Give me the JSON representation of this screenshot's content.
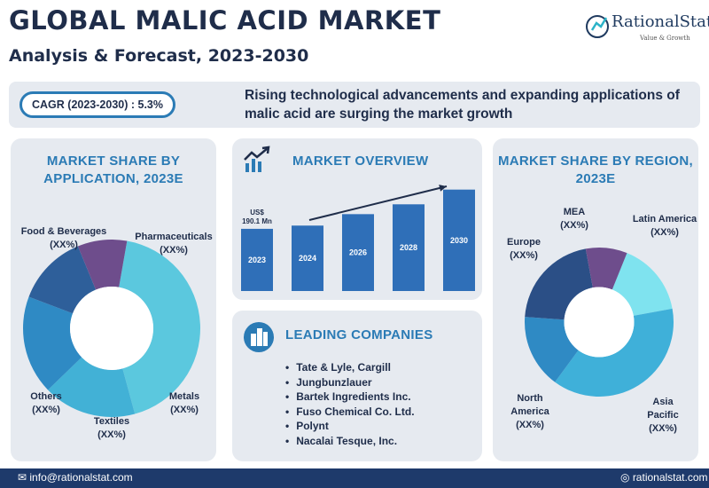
{
  "header": {
    "title": "GLOBAL MALIC ACID MARKET",
    "subtitle": "Analysis & Forecast, 2023-2030",
    "logo_name": "RationalStat",
    "logo_tagline": "Value & Growth"
  },
  "banner": {
    "cagr": "CAGR (2023-2030) : 5.3%",
    "tagline": "Rising technological advancements and expanding applications of malic acid are surging the market growth"
  },
  "colors": {
    "navy": "#1f2d4a",
    "accent": "#2b7bb5",
    "bar": "#2f6fb8",
    "footer": "#1e3a6b"
  },
  "overview": {
    "title": "MARKET OVERVIEW",
    "icon": "chart-trend-icon"
  },
  "companies": {
    "title": "LEADING COMPANIES",
    "icon": "building-icon",
    "items": [
      "Tate & Lyle, Cargill",
      "Jungbunzlauer",
      "Bartek Ingredients Inc.",
      "Fuso Chemical Co. Ltd.",
      "Polynt",
      "Nacalai Tesque, Inc."
    ]
  },
  "footer": {
    "email": "info@rationalstat.com",
    "website": "rationalstat.com",
    "email_icon": "mail-icon",
    "web_icon": "globe-icon"
  },
  "chart_data": [
    {
      "type": "pie",
      "title": "MARKET SHARE BY APPLICATION, 2023E",
      "donut": true,
      "slices": [
        {
          "label": "Food & Beverages",
          "value_label": "(XX%)",
          "value": 43,
          "color": "#5bc8de"
        },
        {
          "label": "Pharmaceuticals",
          "value_label": "(XX%)",
          "value": 17,
          "color": "#42b1d6"
        },
        {
          "label": "Metals",
          "value_label": "(XX%)",
          "value": 18,
          "color": "#2f8ac4"
        },
        {
          "label": "Textiles",
          "value_label": "(XX%)",
          "value": 13,
          "color": "#2e5f9a"
        },
        {
          "label": "Others",
          "value_label": "(XX%)",
          "value": 9,
          "color": "#6e4d8c"
        }
      ]
    },
    {
      "type": "bar",
      "title": "MARKET OVERVIEW",
      "categories": [
        "2023",
        "2024",
        "2026",
        "2028",
        "2030"
      ],
      "values": [
        190.1,
        200,
        235,
        265,
        310
      ],
      "data_labels": [
        "US$ 190.1 Mn",
        "",
        "",
        "",
        ""
      ],
      "ylim": [
        0,
        320
      ],
      "trend_arrow": true
    },
    {
      "type": "pie",
      "title": "MARKET SHARE BY REGION, 2023E",
      "donut": true,
      "slices": [
        {
          "label": "Latin America",
          "value_label": "(XX%)",
          "value": 16,
          "color": "#7fe3ef"
        },
        {
          "label": "Asia Pacific",
          "value_label": "(XX%)",
          "value": 38,
          "color": "#3fb0d9"
        },
        {
          "label": "North America",
          "value_label": "(XX%)",
          "value": 16,
          "color": "#2f8ac4"
        },
        {
          "label": "Europe",
          "value_label": "(XX%)",
          "value": 21,
          "color": "#2b4f86"
        },
        {
          "label": "MEA",
          "value_label": "(XX%)",
          "value": 9,
          "color": "#6e4d8c"
        }
      ]
    }
  ]
}
